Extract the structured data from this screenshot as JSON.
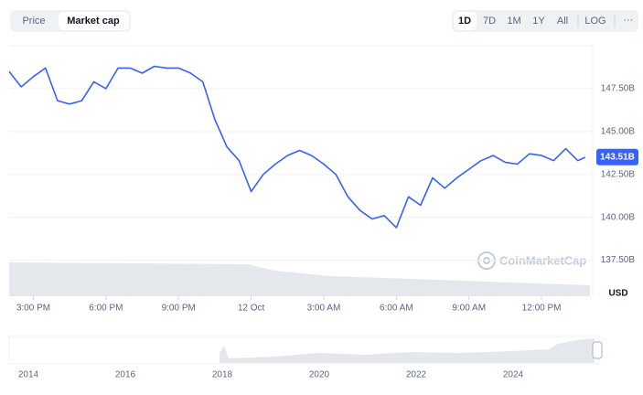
{
  "toolbar": {
    "tabs": [
      "Price",
      "Market cap"
    ],
    "ranges": [
      "1D",
      "7D",
      "1M",
      "1Y",
      "All",
      "LOG"
    ],
    "more": "···"
  },
  "chart_data": {
    "type": "line",
    "color": "#3861fb",
    "grid": true,
    "currency": "USD",
    "watermark": "CoinMarketCap",
    "current_label": {
      "value": 143.51,
      "label": "143.51B"
    },
    "x": [
      14,
      14.5,
      15,
      15.5,
      16,
      16.5,
      17,
      17.5,
      18,
      18.5,
      19,
      19.5,
      20,
      20.5,
      21,
      21.5,
      22,
      22.5,
      23,
      23.5,
      24,
      24.5,
      25,
      25.5,
      26,
      26.5,
      27,
      27.5,
      28,
      28.5,
      29,
      29.5,
      30,
      30.5,
      31,
      31.5,
      32,
      32.5,
      33,
      33.5,
      34,
      34.5,
      35,
      35.5,
      36,
      36.5,
      37,
      37.5,
      37.8
    ],
    "values": [
      148.5,
      147.6,
      148.2,
      148.7,
      146.8,
      146.6,
      146.8,
      147.9,
      147.5,
      148.7,
      148.7,
      148.4,
      148.8,
      148.7,
      148.7,
      148.4,
      147.9,
      145.7,
      144.1,
      143.3,
      141.5,
      142.5,
      143.1,
      143.6,
      143.9,
      143.6,
      143.1,
      142.5,
      141.2,
      140.4,
      139.9,
      140.1,
      139.4,
      141.2,
      140.7,
      142.3,
      141.7,
      142.3,
      142.8,
      143.3,
      143.6,
      143.2,
      143.1,
      143.7,
      143.6,
      143.3,
      144.0,
      143.3,
      143.5
    ],
    "xlim": [
      14,
      38
    ],
    "ylim": [
      135.4,
      150.0
    ],
    "xticks": [
      {
        "value": 15,
        "label": "3:00 PM"
      },
      {
        "value": 18,
        "label": "6:00 PM"
      },
      {
        "value": 21,
        "label": "9:00 PM"
      },
      {
        "value": 24,
        "label": "12 Oct"
      },
      {
        "value": 27,
        "label": "3:00 AM"
      },
      {
        "value": 30,
        "label": "6:00 AM"
      },
      {
        "value": 33,
        "label": "9:00 AM"
      },
      {
        "value": 36,
        "label": "12:00 PM"
      }
    ],
    "yticks": [
      {
        "value": 137.5,
        "label": "137.50B"
      },
      {
        "value": 140,
        "label": "140.00B"
      },
      {
        "value": 142.5,
        "label": "142.50B"
      },
      {
        "value": 145,
        "label": "145.00B"
      },
      {
        "value": 147.5,
        "label": "147.50B"
      }
    ]
  },
  "navigator": {
    "years": [
      "2014",
      "2016",
      "2018",
      "2020",
      "2022",
      "2024"
    ]
  }
}
